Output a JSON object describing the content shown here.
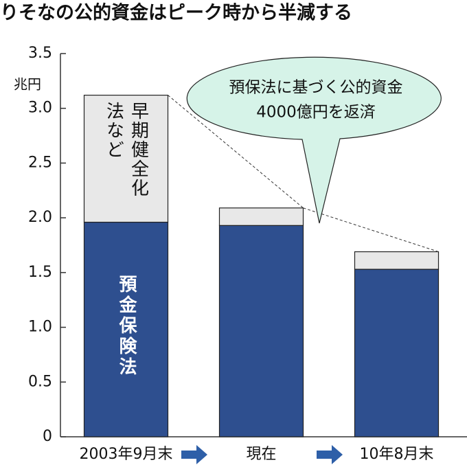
{
  "chart_data": {
    "type": "stacked_bar",
    "title": "りそなの公的資金はピーク時から半減する",
    "y_unit": "兆円",
    "annotation": [
      "預保法に基づく公的資金",
      "4000億円を返済"
    ],
    "categories": [
      "2003年9月末",
      "現在",
      "10年8月末"
    ],
    "series": [
      {
        "name": "預金保険法",
        "color": "#2e4f8f",
        "values": [
          1.96,
          1.93,
          1.53
        ]
      },
      {
        "name": "早期健全化法など",
        "color": "#e8e8e8",
        "values": [
          1.16,
          0.16,
          0.16
        ]
      }
    ],
    "ylim": [
      0,
      3.5
    ],
    "yticks": [
      0,
      0.5,
      {
        "value": 1,
        "label": "1.0"
      },
      1.5,
      {
        "value": 2,
        "label": "2.0"
      },
      2.5,
      {
        "value": 3,
        "label": "3.0"
      },
      3.5
    ]
  }
}
